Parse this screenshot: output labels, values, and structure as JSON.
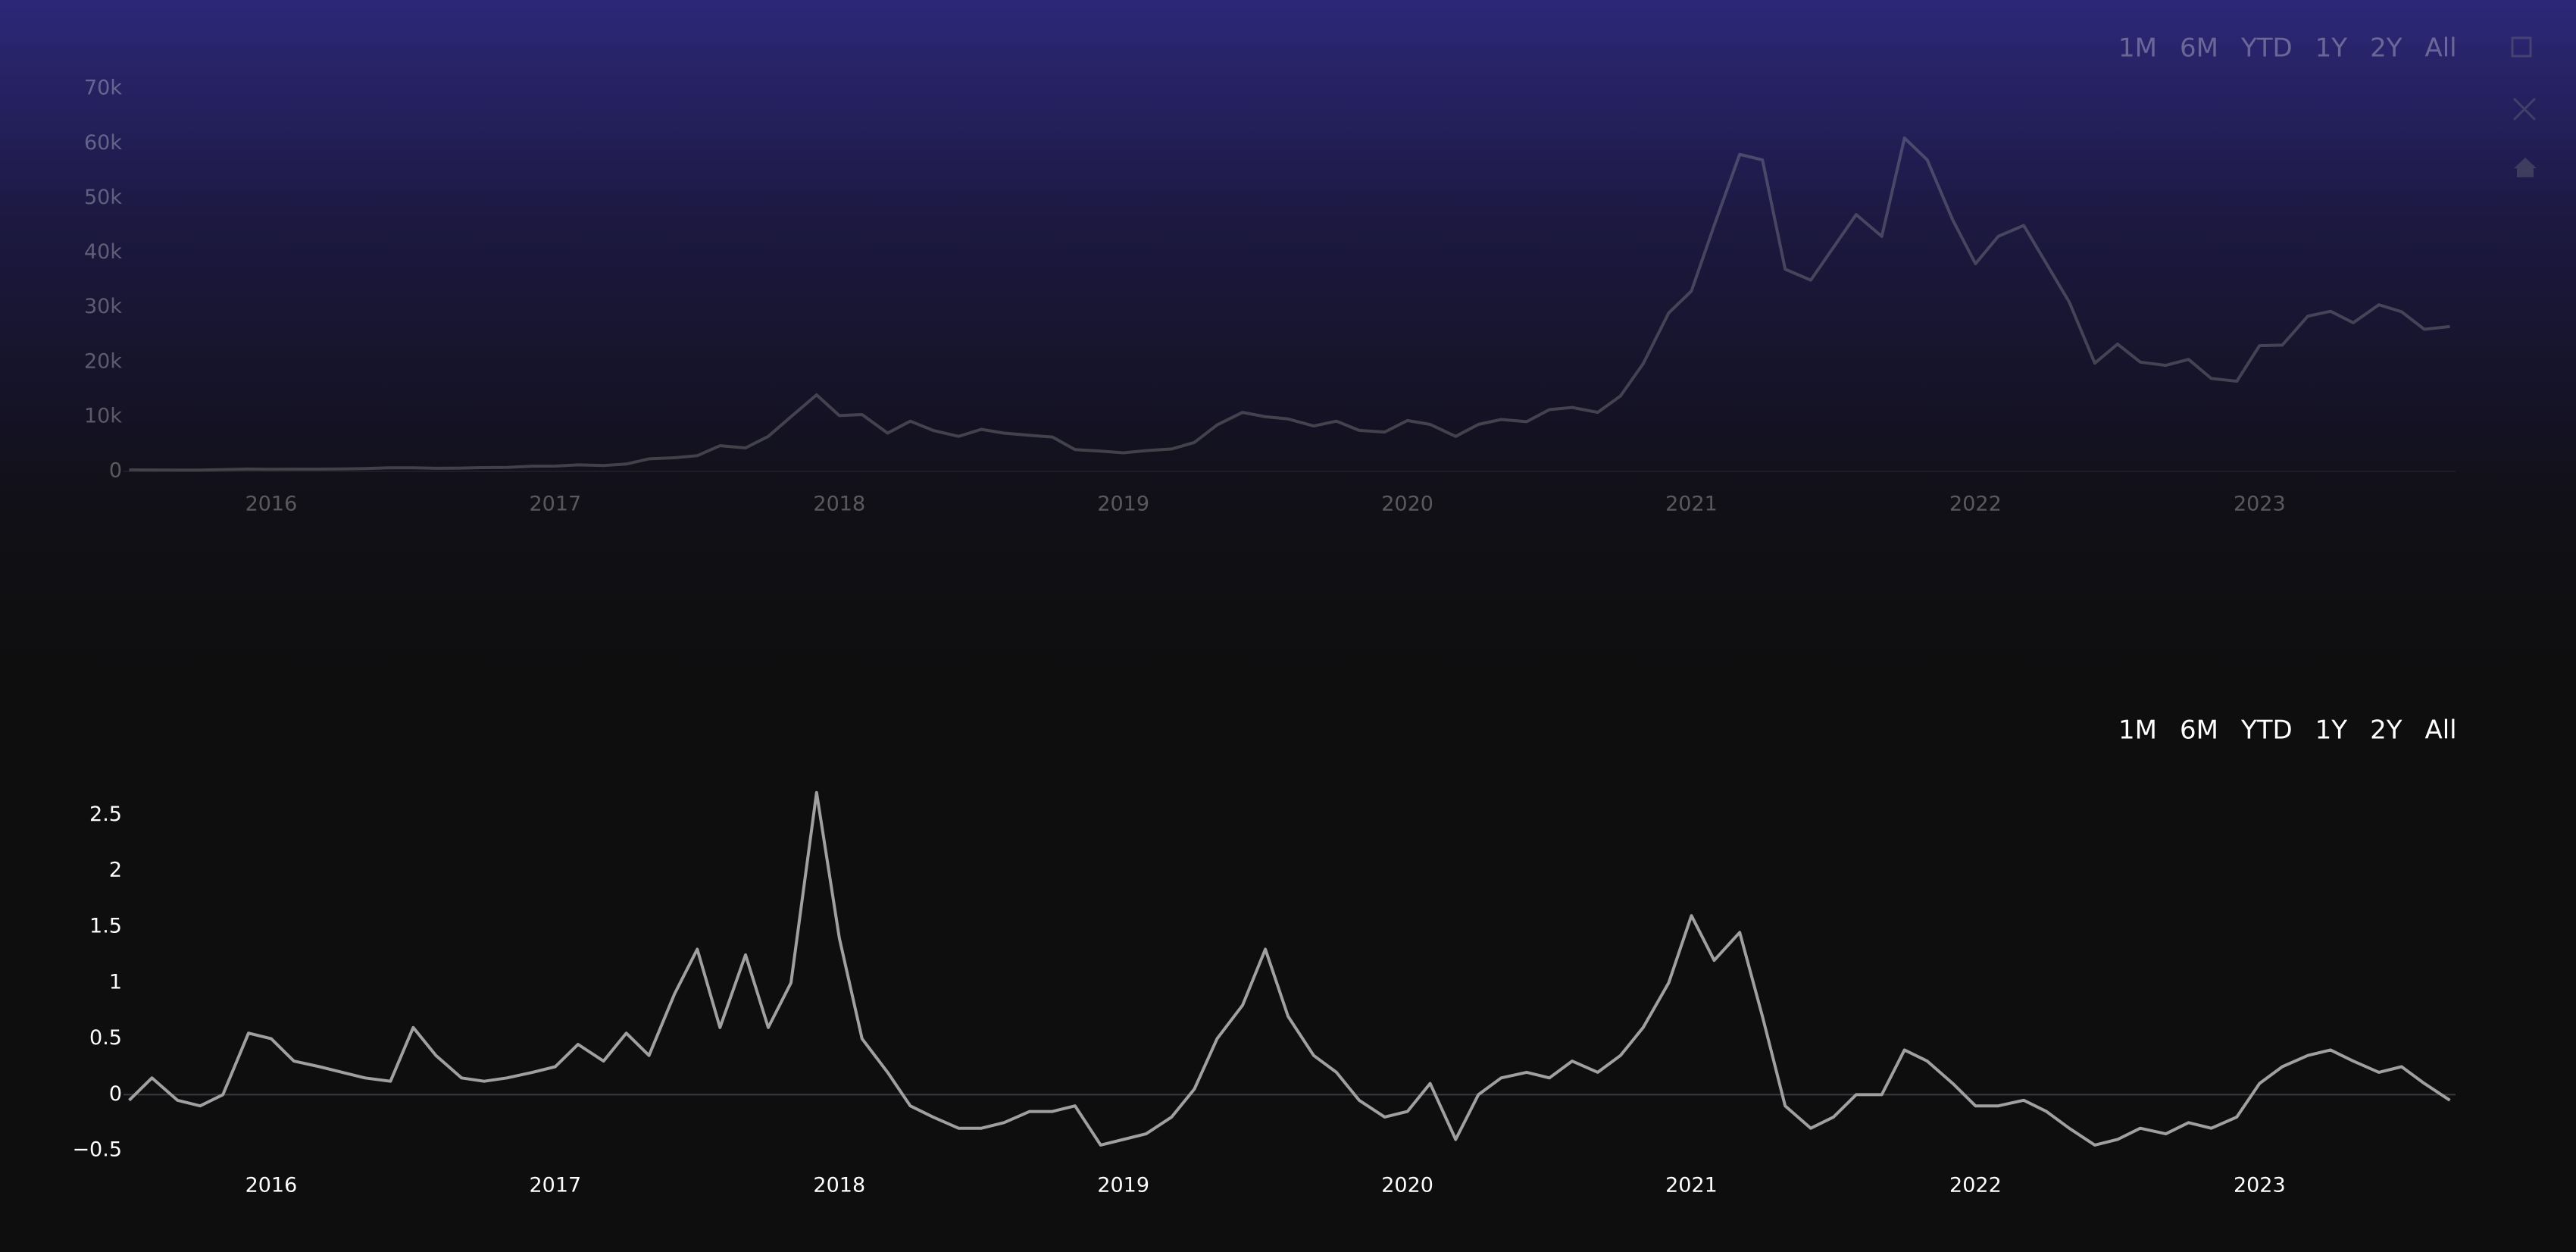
{
  "chart_data": [
    {
      "type": "line",
      "opacity": 0.3,
      "color": "#b0b0b0",
      "range_buttons": [
        "1M",
        "6M",
        "YTD",
        "1Y",
        "2Y",
        "All"
      ],
      "x": [
        2015.5,
        2015.58,
        2015.67,
        2015.75,
        2015.83,
        2015.92,
        2016,
        2016.08,
        2016.17,
        2016.25,
        2016.33,
        2016.42,
        2016.5,
        2016.58,
        2016.67,
        2016.75,
        2016.83,
        2016.92,
        2017,
        2017.08,
        2017.17,
        2017.25,
        2017.33,
        2017.42,
        2017.5,
        2017.58,
        2017.67,
        2017.75,
        2017.83,
        2017.92,
        2018,
        2018.08,
        2018.17,
        2018.25,
        2018.33,
        2018.42,
        2018.5,
        2018.58,
        2018.67,
        2018.75,
        2018.83,
        2018.92,
        2019,
        2019.08,
        2019.17,
        2019.25,
        2019.33,
        2019.42,
        2019.5,
        2019.58,
        2019.67,
        2019.75,
        2019.83,
        2019.92,
        2020,
        2020.08,
        2020.17,
        2020.25,
        2020.33,
        2020.42,
        2020.5,
        2020.58,
        2020.67,
        2020.75,
        2020.83,
        2020.92,
        2021,
        2021.08,
        2021.17,
        2021.25,
        2021.33,
        2021.42,
        2021.5,
        2021.58,
        2021.67,
        2021.75,
        2021.83,
        2021.92,
        2022,
        2022.08,
        2022.17,
        2022.25,
        2022.33,
        2022.42,
        2022.5,
        2022.58,
        2022.67,
        2022.75,
        2022.83,
        2022.92,
        2023,
        2023.08,
        2023.17,
        2023.25,
        2023.33,
        2023.42,
        2023.5,
        2023.58,
        2023.67
      ],
      "values": [
        280,
        260,
        230,
        240,
        330,
        430,
        380,
        420,
        415,
        450,
        530,
        670,
        650,
        575,
        610,
        700,
        740,
        960,
        970,
        1190,
        1080,
        1350,
        2300,
        2500,
        2870,
        4700,
        4300,
        6400,
        10000,
        14000,
        10200,
        10400,
        7000,
        9200,
        7500,
        6400,
        7700,
        7000,
        6600,
        6300,
        4000,
        3700,
        3400,
        3800,
        4100,
        5300,
        8500,
        10800,
        10000,
        9600,
        8300,
        9200,
        7500,
        7200,
        9300,
        8600,
        6400,
        8600,
        9500,
        9100,
        11300,
        11700,
        10800,
        13800,
        19700,
        29000,
        33000,
        45000,
        58000,
        57000,
        37000,
        35000,
        41000,
        47000,
        43000,
        61000,
        57000,
        46000,
        38000,
        43000,
        45000,
        38000,
        31000,
        19800,
        23300,
        20000,
        19400,
        20500,
        17000,
        16500,
        23000,
        23100,
        28400,
        29300,
        27200,
        30500,
        29200,
        26000,
        26500
      ],
      "xlim": [
        2015.48,
        2023.69
      ],
      "xticks": [
        2016,
        2017,
        2018,
        2019,
        2020,
        2021,
        2022,
        2023
      ],
      "ylim": [
        0,
        71000
      ],
      "yticks": [
        0,
        {
          "value": 10000,
          "label": "10k"
        },
        {
          "value": 20000,
          "label": "20k"
        },
        {
          "value": 30000,
          "label": "30k"
        },
        {
          "value": 40000,
          "label": "40k"
        },
        {
          "value": 50000,
          "label": "50k"
        },
        {
          "value": 60000,
          "label": "60k"
        },
        {
          "value": 70000,
          "label": "70k"
        }
      ],
      "zeroline": true
    },
    {
      "type": "line",
      "opacity": 1,
      "color": "#a0a0a0",
      "range_buttons": [
        "1M",
        "6M",
        "YTD",
        "1Y",
        "2Y",
        "All"
      ],
      "x": [
        2015.5,
        2015.58,
        2015.67,
        2015.75,
        2015.83,
        2015.92,
        2016,
        2016.08,
        2016.17,
        2016.25,
        2016.33,
        2016.42,
        2016.5,
        2016.58,
        2016.67,
        2016.75,
        2016.83,
        2016.92,
        2017,
        2017.08,
        2017.17,
        2017.25,
        2017.33,
        2017.42,
        2017.5,
        2017.58,
        2017.67,
        2017.75,
        2017.83,
        2017.92,
        2018,
        2018.08,
        2018.17,
        2018.25,
        2018.33,
        2018.42,
        2018.5,
        2018.58,
        2018.67,
        2018.75,
        2018.83,
        2018.92,
        2019,
        2019.08,
        2019.17,
        2019.25,
        2019.33,
        2019.42,
        2019.5,
        2019.58,
        2019.67,
        2019.75,
        2019.83,
        2019.92,
        2020,
        2020.08,
        2020.17,
        2020.25,
        2020.33,
        2020.42,
        2020.5,
        2020.58,
        2020.67,
        2020.75,
        2020.83,
        2020.92,
        2021,
        2021.08,
        2021.17,
        2021.25,
        2021.33,
        2021.42,
        2021.5,
        2021.58,
        2021.67,
        2021.75,
        2021.83,
        2021.92,
        2022,
        2022.08,
        2022.17,
        2022.25,
        2022.33,
        2022.42,
        2022.5,
        2022.58,
        2022.67,
        2022.75,
        2022.83,
        2022.92,
        2023,
        2023.08,
        2023.17,
        2023.25,
        2023.33,
        2023.42,
        2023.5,
        2023.58,
        2023.67
      ],
      "values": [
        -0.05,
        0.15,
        -0.05,
        -0.1,
        0.0,
        0.55,
        0.5,
        0.3,
        0.25,
        0.2,
        0.15,
        0.12,
        0.6,
        0.35,
        0.15,
        0.12,
        0.15,
        0.2,
        0.25,
        0.45,
        0.3,
        0.55,
        0.35,
        0.9,
        1.3,
        0.6,
        1.25,
        0.6,
        1.0,
        2.7,
        1.4,
        0.5,
        0.2,
        -0.1,
        -0.2,
        -0.3,
        -0.3,
        -0.25,
        -0.15,
        -0.15,
        -0.1,
        -0.45,
        -0.4,
        -0.35,
        -0.2,
        0.05,
        0.5,
        0.8,
        1.3,
        0.7,
        0.35,
        0.2,
        -0.05,
        -0.2,
        -0.15,
        0.1,
        -0.4,
        0.0,
        0.15,
        0.2,
        0.15,
        0.3,
        0.2,
        0.35,
        0.6,
        1.0,
        1.6,
        1.2,
        1.45,
        0.7,
        -0.1,
        -0.3,
        -0.2,
        0.0,
        0.0,
        0.4,
        0.3,
        0.1,
        -0.1,
        -0.1,
        -0.05,
        -0.15,
        -0.3,
        -0.45,
        -0.4,
        -0.3,
        -0.35,
        -0.25,
        -0.3,
        -0.2,
        0.1,
        0.25,
        0.35,
        0.4,
        0.3,
        0.2,
        0.25,
        0.1,
        -0.05
      ],
      "xlim": [
        2015.48,
        2023.69
      ],
      "xticks": [
        2016,
        2017,
        2018,
        2019,
        2020,
        2021,
        2022,
        2023
      ],
      "ylim": [
        -0.6,
        2.8
      ],
      "yticks": [
        {
          "value": -0.5,
          "label": "−0.5"
        },
        0,
        0.5,
        1,
        1.5,
        2,
        2.5
      ],
      "zeroline": true
    }
  ]
}
